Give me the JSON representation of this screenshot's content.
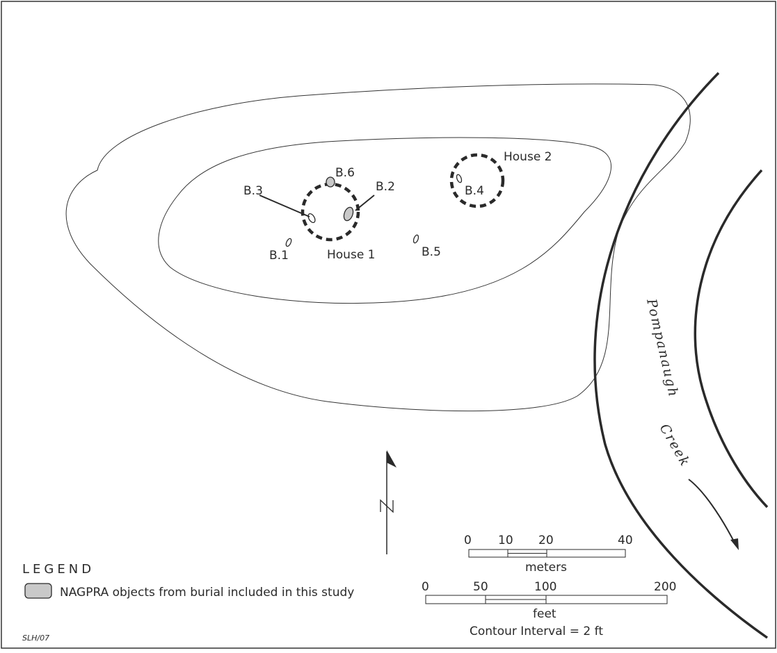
{
  "features": {
    "house1": {
      "label": "House 1"
    },
    "house2": {
      "label": "House 2"
    },
    "burials": [
      {
        "id": "b1",
        "label": "B.1",
        "included": false
      },
      {
        "id": "b2",
        "label": "B.2",
        "included": true
      },
      {
        "id": "b3",
        "label": "B.3",
        "included": false
      },
      {
        "id": "b4",
        "label": "B.4",
        "included": false
      },
      {
        "id": "b5",
        "label": "B.5",
        "included": false
      },
      {
        "id": "b6",
        "label": "B.6",
        "included": true
      }
    ],
    "creek": {
      "word1": "Pompanaugh",
      "word2": "Creek"
    }
  },
  "north_arrow": {
    "label": "N"
  },
  "legend": {
    "title": "LEGEND",
    "items": [
      {
        "label": "NAGPRA objects from burial included in this study",
        "swatch_color": "#c9c9c9"
      }
    ]
  },
  "scale_bars": {
    "meters": {
      "ticks": [
        "0",
        "10",
        "20",
        "40"
      ],
      "unit": "meters"
    },
    "feet": {
      "ticks": [
        "0",
        "50",
        "100",
        "200"
      ],
      "unit": "feet"
    }
  },
  "contour_interval": "Contour Interval = 2 ft",
  "signature": "SLH/07",
  "colors": {
    "line": "#2a2a2a",
    "fill_included": "#c9c9c9",
    "background": "#ffffff"
  }
}
